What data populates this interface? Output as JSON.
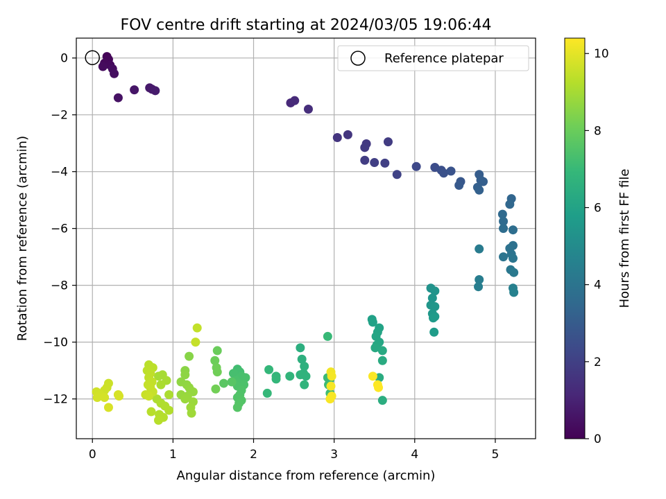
{
  "chart_data": {
    "type": "scatter",
    "title": "FOV centre drift starting at 2024/03/05 19:06:44",
    "xlabel": "Angular distance from reference (arcmin)",
    "ylabel": "Rotation from reference (arcmin)",
    "xlim": [
      -0.2,
      5.5
    ],
    "ylim": [
      -13.4,
      0.7
    ],
    "xticks": [
      0,
      1,
      2,
      3,
      4,
      5
    ],
    "xtick_labels": [
      "0",
      "1",
      "2",
      "3",
      "4",
      "5"
    ],
    "yticks": [
      0,
      -2,
      -4,
      -6,
      -8,
      -10,
      -12
    ],
    "ytick_labels": [
      "0",
      "−2",
      "−4",
      "−6",
      "−8",
      "−10",
      "−12"
    ],
    "grid": true,
    "legend": {
      "placement": "top-right",
      "entries": [
        "Reference platepar"
      ]
    },
    "reference_point": {
      "x": 0,
      "y": 0
    },
    "colorbar": {
      "label": "Hours from first FF file",
      "min": 0,
      "max": 10.4,
      "ticks": [
        0,
        2,
        4,
        6,
        8,
        10
      ],
      "tick_labels": [
        "0",
        "2",
        "4",
        "6",
        "8",
        "10"
      ],
      "colormap": "viridis",
      "colormap_stops": [
        "#440154",
        "#482878",
        "#3e4989",
        "#31688e",
        "#26828e",
        "#1f9e89",
        "#35b779",
        "#6ece58",
        "#b5de2b",
        "#fde725"
      ]
    },
    "series": [
      {
        "points": [
          {
            "x": 0.18,
            "y": 0.05,
            "h": 0.1
          },
          {
            "x": 0.2,
            "y": -0.05,
            "h": 0.15
          },
          {
            "x": 0.15,
            "y": -0.18,
            "h": 0.2
          },
          {
            "x": 0.22,
            "y": -0.25,
            "h": 0.25
          },
          {
            "x": 0.13,
            "y": -0.3,
            "h": 0.3
          },
          {
            "x": 0.25,
            "y": -0.38,
            "h": 0.35
          },
          {
            "x": 0.27,
            "y": -0.55,
            "h": 0.4
          },
          {
            "x": 0.32,
            "y": -1.4,
            "h": 0.5
          },
          {
            "x": 0.52,
            "y": -1.12,
            "h": 0.6
          },
          {
            "x": 0.71,
            "y": -1.05,
            "h": 0.7
          },
          {
            "x": 0.74,
            "y": -1.1,
            "h": 0.75
          },
          {
            "x": 0.78,
            "y": -1.15,
            "h": 0.8
          },
          {
            "x": 2.46,
            "y": -1.58,
            "h": 1.2
          },
          {
            "x": 2.51,
            "y": -1.5,
            "h": 1.25
          },
          {
            "x": 2.68,
            "y": -1.8,
            "h": 1.35
          },
          {
            "x": 3.04,
            "y": -2.8,
            "h": 1.6
          },
          {
            "x": 3.17,
            "y": -2.7,
            "h": 1.65
          },
          {
            "x": 3.4,
            "y": -3.02,
            "h": 1.75
          },
          {
            "x": 3.38,
            "y": -3.15,
            "h": 1.8
          },
          {
            "x": 3.67,
            "y": -2.95,
            "h": 1.85
          },
          {
            "x": 3.38,
            "y": -3.6,
            "h": 1.9
          },
          {
            "x": 3.5,
            "y": -3.68,
            "h": 1.95
          },
          {
            "x": 3.63,
            "y": -3.7,
            "h": 2.0
          },
          {
            "x": 3.78,
            "y": -4.1,
            "h": 2.1
          },
          {
            "x": 4.02,
            "y": -3.82,
            "h": 2.3
          },
          {
            "x": 4.25,
            "y": -3.85,
            "h": 2.45
          },
          {
            "x": 4.33,
            "y": -3.95,
            "h": 2.55
          },
          {
            "x": 4.36,
            "y": -4.05,
            "h": 2.6
          },
          {
            "x": 4.45,
            "y": -3.98,
            "h": 2.7
          },
          {
            "x": 4.57,
            "y": -4.35,
            "h": 2.85
          },
          {
            "x": 4.55,
            "y": -4.48,
            "h": 2.9
          },
          {
            "x": 4.8,
            "y": -4.1,
            "h": 3.05
          },
          {
            "x": 4.82,
            "y": -4.3,
            "h": 3.1
          },
          {
            "x": 4.85,
            "y": -4.35,
            "h": 3.12
          },
          {
            "x": 4.78,
            "y": -4.55,
            "h": 3.15
          },
          {
            "x": 4.8,
            "y": -4.65,
            "h": 3.2
          },
          {
            "x": 5.2,
            "y": -4.95,
            "h": 3.4
          },
          {
            "x": 5.18,
            "y": -5.15,
            "h": 3.45
          },
          {
            "x": 5.09,
            "y": -5.5,
            "h": 3.55
          },
          {
            "x": 5.1,
            "y": -5.75,
            "h": 3.6
          },
          {
            "x": 5.1,
            "y": -6.0,
            "h": 3.7
          },
          {
            "x": 5.22,
            "y": -6.05,
            "h": 3.75
          },
          {
            "x": 5.22,
            "y": -6.6,
            "h": 3.85
          },
          {
            "x": 5.18,
            "y": -6.7,
            "h": 3.9
          },
          {
            "x": 5.2,
            "y": -6.9,
            "h": 3.95
          },
          {
            "x": 5.1,
            "y": -7.0,
            "h": 4.0
          },
          {
            "x": 5.22,
            "y": -7.05,
            "h": 4.05
          },
          {
            "x": 5.19,
            "y": -7.45,
            "h": 4.15
          },
          {
            "x": 5.23,
            "y": -7.55,
            "h": 4.2
          },
          {
            "x": 4.8,
            "y": -6.72,
            "h": 4.3
          },
          {
            "x": 4.8,
            "y": -7.8,
            "h": 4.4
          },
          {
            "x": 4.79,
            "y": -8.05,
            "h": 4.45
          },
          {
            "x": 5.22,
            "y": -8.1,
            "h": 4.55
          },
          {
            "x": 5.23,
            "y": -8.25,
            "h": 4.6
          },
          {
            "x": 4.2,
            "y": -8.1,
            "h": 5.3
          },
          {
            "x": 4.25,
            "y": -8.2,
            "h": 5.35
          },
          {
            "x": 4.22,
            "y": -8.45,
            "h": 5.4
          },
          {
            "x": 4.2,
            "y": -8.7,
            "h": 5.45
          },
          {
            "x": 4.25,
            "y": -8.75,
            "h": 5.5
          },
          {
            "x": 4.22,
            "y": -9.0,
            "h": 5.55
          },
          {
            "x": 4.25,
            "y": -9.1,
            "h": 5.6
          },
          {
            "x": 4.23,
            "y": -9.15,
            "h": 5.65
          },
          {
            "x": 4.24,
            "y": -9.65,
            "h": 5.7
          },
          {
            "x": 3.47,
            "y": -9.2,
            "h": 5.9
          },
          {
            "x": 3.48,
            "y": -9.3,
            "h": 5.95
          },
          {
            "x": 3.56,
            "y": -9.5,
            "h": 6.0
          },
          {
            "x": 3.54,
            "y": -9.65,
            "h": 6.05
          },
          {
            "x": 3.52,
            "y": -9.8,
            "h": 6.1
          },
          {
            "x": 3.56,
            "y": -10.0,
            "h": 6.15
          },
          {
            "x": 3.53,
            "y": -10.1,
            "h": 6.2
          },
          {
            "x": 3.51,
            "y": -10.2,
            "h": 6.25
          },
          {
            "x": 3.6,
            "y": -10.3,
            "h": 6.3
          },
          {
            "x": 3.6,
            "y": -10.65,
            "h": 6.35
          },
          {
            "x": 3.56,
            "y": -11.25,
            "h": 6.4
          },
          {
            "x": 3.6,
            "y": -12.05,
            "h": 6.45
          },
          {
            "x": 2.58,
            "y": -10.2,
            "h": 6.5
          },
          {
            "x": 2.6,
            "y": -10.6,
            "h": 6.55
          },
          {
            "x": 2.63,
            "y": -10.85,
            "h": 6.6
          },
          {
            "x": 2.62,
            "y": -11.1,
            "h": 6.65
          },
          {
            "x": 2.58,
            "y": -11.15,
            "h": 6.7
          },
          {
            "x": 2.65,
            "y": -11.2,
            "h": 6.72
          },
          {
            "x": 2.63,
            "y": -11.5,
            "h": 6.75
          },
          {
            "x": 2.45,
            "y": -11.2,
            "h": 6.8
          },
          {
            "x": 2.28,
            "y": -11.2,
            "h": 6.85
          },
          {
            "x": 2.28,
            "y": -11.3,
            "h": 6.88
          },
          {
            "x": 2.19,
            "y": -10.97,
            "h": 6.9
          },
          {
            "x": 2.17,
            "y": -11.8,
            "h": 6.95
          },
          {
            "x": 2.92,
            "y": -9.8,
            "h": 7.0
          },
          {
            "x": 2.92,
            "y": -11.25,
            "h": 7.05
          },
          {
            "x": 2.95,
            "y": -11.3,
            "h": 7.08
          },
          {
            "x": 2.93,
            "y": -11.5,
            "h": 7.1
          },
          {
            "x": 2.95,
            "y": -11.8,
            "h": 7.12
          },
          {
            "x": 1.8,
            "y": -10.95,
            "h": 7.2
          },
          {
            "x": 1.83,
            "y": -11.05,
            "h": 7.25
          },
          {
            "x": 1.75,
            "y": -11.1,
            "h": 7.3
          },
          {
            "x": 1.85,
            "y": -11.2,
            "h": 7.32
          },
          {
            "x": 1.9,
            "y": -11.25,
            "h": 7.35
          },
          {
            "x": 1.78,
            "y": -11.35,
            "h": 7.38
          },
          {
            "x": 1.82,
            "y": -11.45,
            "h": 7.4
          },
          {
            "x": 1.88,
            "y": -11.5,
            "h": 7.42
          },
          {
            "x": 1.8,
            "y": -11.55,
            "h": 7.45
          },
          {
            "x": 1.85,
            "y": -11.7,
            "h": 7.48
          },
          {
            "x": 1.83,
            "y": -11.85,
            "h": 7.5
          },
          {
            "x": 1.8,
            "y": -11.95,
            "h": 7.52
          },
          {
            "x": 1.85,
            "y": -12.05,
            "h": 7.55
          },
          {
            "x": 1.82,
            "y": -12.15,
            "h": 7.58
          },
          {
            "x": 1.8,
            "y": -12.3,
            "h": 7.6
          },
          {
            "x": 1.73,
            "y": -11.4,
            "h": 7.65
          },
          {
            "x": 1.63,
            "y": -11.45,
            "h": 7.7
          },
          {
            "x": 1.55,
            "y": -10.3,
            "h": 8.0
          },
          {
            "x": 1.52,
            "y": -10.65,
            "h": 8.05
          },
          {
            "x": 1.54,
            "y": -10.9,
            "h": 8.1
          },
          {
            "x": 1.55,
            "y": -11.05,
            "h": 8.12
          },
          {
            "x": 1.53,
            "y": -11.65,
            "h": 8.15
          },
          {
            "x": 1.2,
            "y": -10.5,
            "h": 8.5
          },
          {
            "x": 1.15,
            "y": -11.0,
            "h": 8.55
          },
          {
            "x": 1.15,
            "y": -11.15,
            "h": 8.6
          },
          {
            "x": 1.1,
            "y": -11.4,
            "h": 8.62
          },
          {
            "x": 1.17,
            "y": -11.5,
            "h": 8.65
          },
          {
            "x": 1.2,
            "y": -11.6,
            "h": 8.68
          },
          {
            "x": 1.22,
            "y": -11.7,
            "h": 8.7
          },
          {
            "x": 1.25,
            "y": -11.75,
            "h": 8.72
          },
          {
            "x": 1.1,
            "y": -11.85,
            "h": 8.75
          },
          {
            "x": 1.18,
            "y": -11.9,
            "h": 8.78
          },
          {
            "x": 1.15,
            "y": -12.0,
            "h": 8.8
          },
          {
            "x": 1.25,
            "y": -12.1,
            "h": 8.82
          },
          {
            "x": 1.22,
            "y": -12.3,
            "h": 8.85
          },
          {
            "x": 1.23,
            "y": -12.5,
            "h": 8.88
          },
          {
            "x": 0.82,
            "y": -11.2,
            "h": 9.0
          },
          {
            "x": 0.87,
            "y": -11.15,
            "h": 9.02
          },
          {
            "x": 0.92,
            "y": -11.35,
            "h": 9.05
          },
          {
            "x": 0.85,
            "y": -11.5,
            "h": 9.08
          },
          {
            "x": 0.95,
            "y": -11.85,
            "h": 9.1
          },
          {
            "x": 0.8,
            "y": -12.0,
            "h": 9.12
          },
          {
            "x": 0.85,
            "y": -12.15,
            "h": 9.15
          },
          {
            "x": 0.9,
            "y": -12.25,
            "h": 9.18
          },
          {
            "x": 0.95,
            "y": -12.4,
            "h": 9.2
          },
          {
            "x": 0.83,
            "y": -12.55,
            "h": 9.22
          },
          {
            "x": 0.88,
            "y": -12.65,
            "h": 9.25
          },
          {
            "x": 0.82,
            "y": -12.75,
            "h": 9.28
          },
          {
            "x": 0.73,
            "y": -12.45,
            "h": 9.3
          },
          {
            "x": 0.7,
            "y": -10.8,
            "h": 9.32
          },
          {
            "x": 0.75,
            "y": -10.9,
            "h": 9.35
          },
          {
            "x": 0.68,
            "y": -11.0,
            "h": 9.38
          },
          {
            "x": 0.72,
            "y": -11.1,
            "h": 9.4
          },
          {
            "x": 0.7,
            "y": -11.25,
            "h": 9.42
          },
          {
            "x": 0.74,
            "y": -11.4,
            "h": 9.45
          },
          {
            "x": 0.69,
            "y": -11.5,
            "h": 9.48
          },
          {
            "x": 0.72,
            "y": -11.6,
            "h": 9.5
          },
          {
            "x": 0.75,
            "y": -11.75,
            "h": 9.52
          },
          {
            "x": 0.66,
            "y": -11.85,
            "h": 9.55
          },
          {
            "x": 0.7,
            "y": -11.9,
            "h": 9.58
          },
          {
            "x": 0.2,
            "y": -11.45,
            "h": 9.6
          },
          {
            "x": 0.18,
            "y": -11.6,
            "h": 9.62
          },
          {
            "x": 0.15,
            "y": -11.7,
            "h": 9.65
          },
          {
            "x": 0.05,
            "y": -11.75,
            "h": 9.67
          },
          {
            "x": 0.1,
            "y": -11.85,
            "h": 9.7
          },
          {
            "x": 0.06,
            "y": -11.95,
            "h": 9.72
          },
          {
            "x": 0.15,
            "y": -11.95,
            "h": 9.74
          },
          {
            "x": 0.32,
            "y": -11.85,
            "h": 9.76
          },
          {
            "x": 0.33,
            "y": -11.9,
            "h": 9.78
          },
          {
            "x": 0.2,
            "y": -12.3,
            "h": 9.8
          },
          {
            "x": 1.3,
            "y": -9.5,
            "h": 9.45
          },
          {
            "x": 1.28,
            "y": -10.0,
            "h": 9.5
          },
          {
            "x": 2.96,
            "y": -11.05,
            "h": 10.2
          },
          {
            "x": 2.97,
            "y": -11.2,
            "h": 10.25
          },
          {
            "x": 2.96,
            "y": -11.55,
            "h": 10.28
          },
          {
            "x": 2.97,
            "y": -11.9,
            "h": 10.3
          },
          {
            "x": 2.95,
            "y": -12.0,
            "h": 10.32
          },
          {
            "x": 3.48,
            "y": -11.2,
            "h": 10.35
          },
          {
            "x": 3.54,
            "y": -11.5,
            "h": 10.38
          },
          {
            "x": 3.55,
            "y": -11.6,
            "h": 10.4
          }
        ]
      }
    ]
  }
}
